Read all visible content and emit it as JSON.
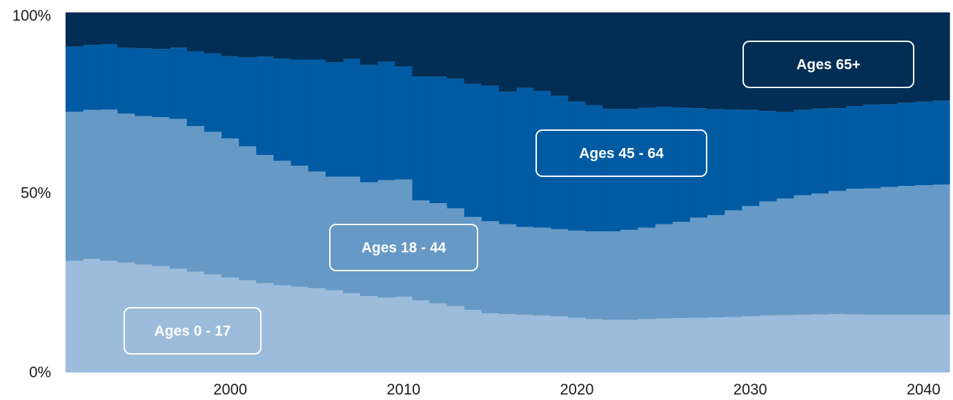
{
  "chart_data": {
    "type": "area",
    "stacked": "percent",
    "x": [
      1991,
      1992,
      1993,
      1994,
      1995,
      1996,
      1997,
      1998,
      1999,
      2000,
      2001,
      2002,
      2003,
      2004,
      2005,
      2006,
      2007,
      2008,
      2009,
      2010,
      2011,
      2012,
      2013,
      2014,
      2015,
      2016,
      2017,
      2018,
      2019,
      2020,
      2021,
      2022,
      2023,
      2024,
      2025,
      2026,
      2027,
      2028,
      2029,
      2030,
      2031,
      2032,
      2033,
      2034,
      2035,
      2036,
      2037,
      2038,
      2039,
      2040,
      2041
    ],
    "series": [
      {
        "name": "Ages 0 - 17",
        "color": "#9dbcdb",
        "values": [
          31,
          31.5,
          31,
          30.5,
          30,
          29.5,
          28.8,
          28,
          27.2,
          26.4,
          25.6,
          24.8,
          24.2,
          23.8,
          23.4,
          22.8,
          22,
          21.2,
          20.8,
          21,
          20,
          19.2,
          18.4,
          17.4,
          16.4,
          16.2,
          16,
          15.8,
          15.6,
          15.2,
          14.8,
          14.6,
          14.6,
          14.8,
          15,
          15.1,
          15.2,
          15.3,
          15.4,
          15.6,
          15.8,
          15.9,
          16,
          16.1,
          16.2,
          16.1,
          16,
          16,
          16,
          16,
          16
        ]
      },
      {
        "name": "Ages 18 - 44",
        "color": "#6699c6",
        "values": [
          41.4,
          41.4,
          42,
          41.4,
          41.2,
          41.4,
          41.6,
          40.4,
          39.6,
          38.6,
          37.2,
          35.6,
          34.6,
          33.6,
          32.4,
          31.6,
          32.4,
          31.6,
          32.6,
          32.6,
          27.8,
          27.8,
          27.2,
          25.8,
          25.6,
          25,
          24.4,
          24.4,
          24.2,
          24.2,
          24.4,
          24.6,
          25,
          25.4,
          26.2,
          26.7,
          27.8,
          28.4,
          29.6,
          30.6,
          31.7,
          32.4,
          33.2,
          33.6,
          34.2,
          34.9,
          35.1,
          35.5,
          35.8,
          36,
          36.2
        ]
      },
      {
        "name": "Ages 45 - 64",
        "color": "#005ba3",
        "values": [
          18.1,
          18.1,
          18.2,
          18.2,
          18.8,
          18.9,
          19.8,
          20.8,
          21.8,
          22.8,
          24.7,
          27.3,
          28.4,
          29.5,
          31.1,
          31.7,
          32.7,
          32.6,
          32.9,
          31.4,
          34.4,
          35.2,
          36,
          37,
          37.6,
          36.8,
          38.6,
          38,
          37,
          35.8,
          35,
          34,
          33.6,
          33.3,
          32.6,
          31.8,
          30.4,
          29.4,
          28,
          26.7,
          25.1,
          24,
          23.7,
          23.6,
          23,
          23,
          23.3,
          23,
          23.1,
          23.2,
          23.3
        ]
      },
      {
        "name": "Ages 65+",
        "color": "#022d54",
        "values": [
          9.5,
          9,
          8.8,
          9.9,
          10,
          10.2,
          9.8,
          10.8,
          11.4,
          12.2,
          12.5,
          12.3,
          12.8,
          13.1,
          13.1,
          13.9,
          12.9,
          14.6,
          13.7,
          15,
          17.8,
          17.8,
          18.4,
          19.8,
          20.4,
          22,
          21,
          21.8,
          23.2,
          24.8,
          25.8,
          26.8,
          26.8,
          26.5,
          26.2,
          26.4,
          26.6,
          26.9,
          27,
          27.1,
          27.4,
          27.7,
          27.1,
          26.7,
          26.6,
          26,
          25.6,
          25.5,
          25.1,
          24.8,
          24.5
        ]
      }
    ],
    "xlim": [
      1991,
      2041
    ],
    "ylim": [
      0,
      100
    ],
    "x_ticks": [
      2000,
      2010,
      2020,
      2030,
      2040
    ],
    "y_tick_labels": [
      "0%",
      "50%",
      "100%"
    ],
    "y_ticks": [
      0,
      50,
      100
    ],
    "legend": "in-chart labels",
    "grid": false,
    "title": "",
    "xlabel": "",
    "ylabel": ""
  }
}
